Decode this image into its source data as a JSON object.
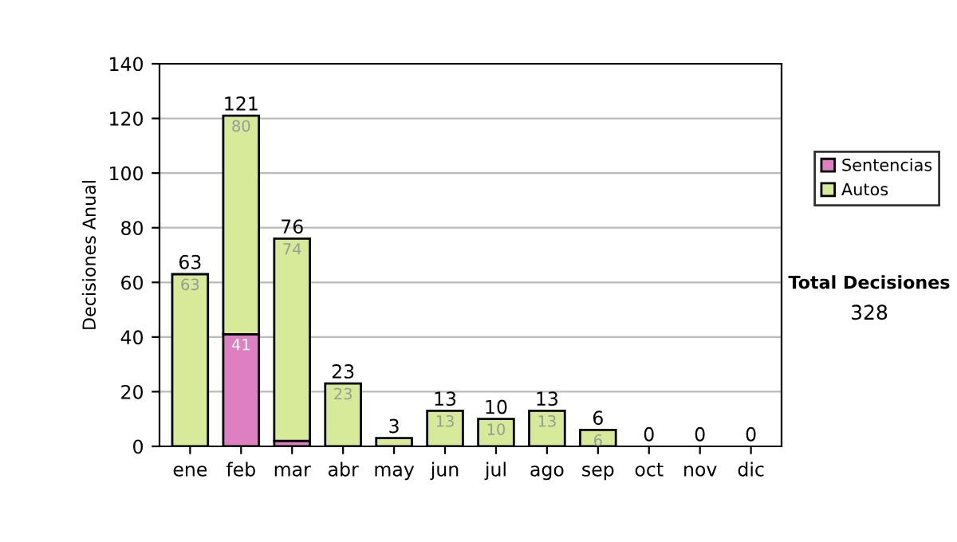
{
  "chart_data": {
    "type": "bar",
    "stacked": true,
    "ylabel": "Decisiones Anual",
    "categories": [
      "ene",
      "feb",
      "mar",
      "abr",
      "may",
      "jun",
      "jul",
      "ago",
      "sep",
      "oct",
      "nov",
      "dic"
    ],
    "series": [
      {
        "name": "Sentencias",
        "color": "#dd7fc0",
        "values": [
          0,
          41,
          2,
          0,
          0,
          0,
          0,
          0,
          0,
          0,
          0,
          0
        ],
        "value_labels": [
          null,
          "41",
          null,
          null,
          null,
          null,
          null,
          null,
          null,
          null,
          null,
          null
        ]
      },
      {
        "name": "Autos",
        "color": "#d6ea9a",
        "values": [
          63,
          80,
          74,
          23,
          3,
          13,
          10,
          13,
          6,
          0,
          0,
          0
        ],
        "value_labels": [
          "63",
          "80",
          "74",
          "23",
          null,
          "13",
          "10",
          "13",
          "6",
          null,
          null,
          null
        ]
      }
    ],
    "totals": [
      "63",
      "121",
      "76",
      "23",
      "3",
      "13",
      "10",
      "13",
      "6",
      "0",
      "0",
      "0"
    ],
    "ylim": [
      0,
      140
    ],
    "yticks": [
      0,
      20,
      40,
      60,
      80,
      100,
      120,
      140
    ],
    "grid": "y",
    "legend": "right",
    "annotations": [
      "Total Decisiones",
      "328"
    ]
  }
}
